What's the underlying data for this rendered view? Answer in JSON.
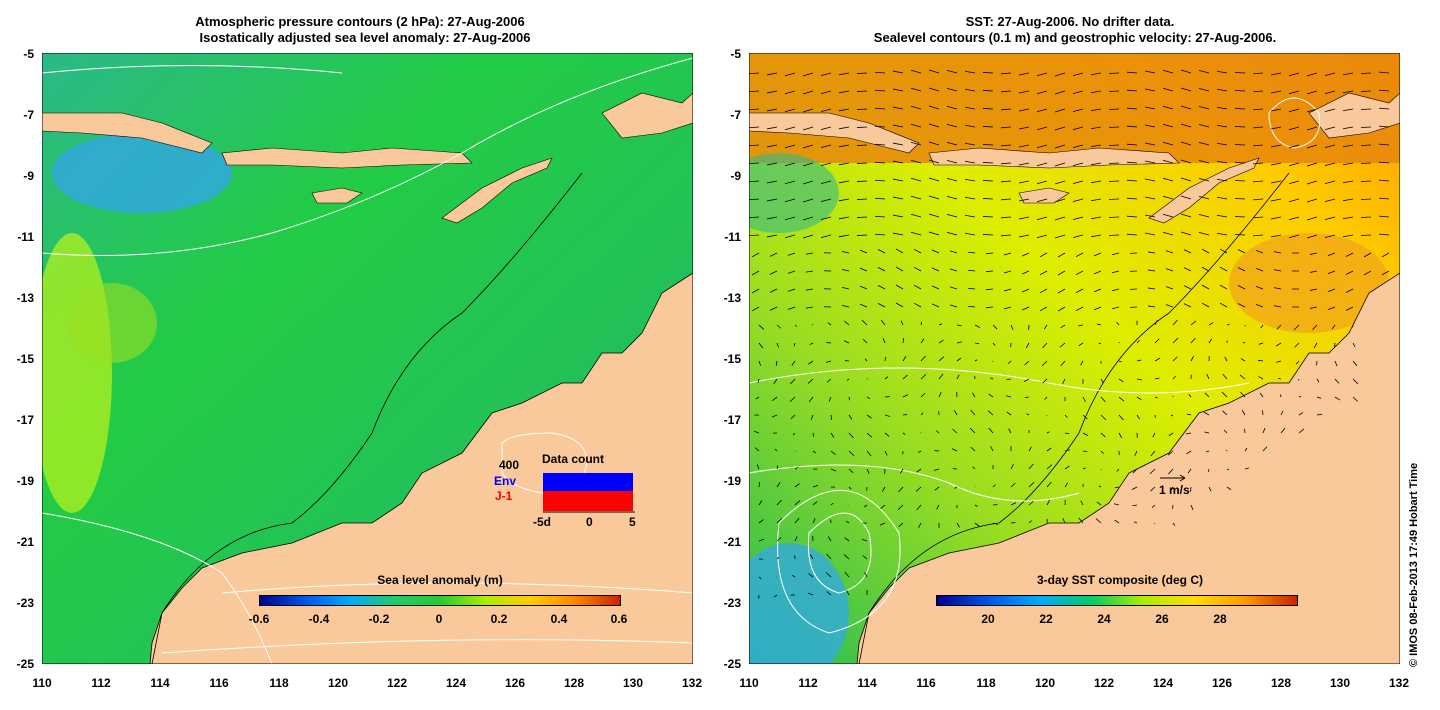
{
  "left_panel": {
    "title_line1": "Atmospheric pressure contours (2 hPa): 27-Aug-2006",
    "title_line2": "Isostatically adjusted sea level anomaly: 27-Aug-2006",
    "colorbar_label": "Sea level anomaly (m)",
    "colorbar_ticks": [
      "-0.6",
      "-0.4",
      "-0.2",
      "0",
      "0.2",
      "0.4",
      "0.6"
    ],
    "inset": {
      "title": "Data count",
      "scale_label": "400",
      "series": [
        {
          "name": "Env",
          "color": "#0000ff"
        },
        {
          "name": "J-1",
          "color": "#ff0000"
        }
      ],
      "x_ticks": [
        "-5d",
        "0",
        "5"
      ]
    }
  },
  "right_panel": {
    "title_line1": "SST: 27-Aug-2006. No drifter data.",
    "title_line2": "Sealevel contours (0.1 m) and geostrophic velocity: 27-Aug-2006.",
    "colorbar_label": "3-day SST composite (deg C)",
    "colorbar_ticks": [
      "20",
      "22",
      "24",
      "26",
      "28"
    ],
    "velocity_scale_label": "1 m/s"
  },
  "axes": {
    "lat_ticks": [
      "-5",
      "-7",
      "-9",
      "-11",
      "-13",
      "-15",
      "-17",
      "-19",
      "-21",
      "-23",
      "-25"
    ],
    "lon_ticks": [
      "110",
      "112",
      "114",
      "116",
      "118",
      "120",
      "122",
      "124",
      "126",
      "128",
      "130",
      "132"
    ]
  },
  "credit": "© IMOS 08-Feb-2013 17:49 Hobart Time",
  "colors": {
    "land": "#f9c89b",
    "sla_scale": [
      "#00008b",
      "#0066ff",
      "#00bbff",
      "#22cc44",
      "#aaee00",
      "#ffaa00",
      "#cc2200"
    ],
    "sst_scale": [
      "#00008b",
      "#0088ff",
      "#00cc66",
      "#aaee00",
      "#ffcc00",
      "#ff8800",
      "#cc2200"
    ]
  }
}
